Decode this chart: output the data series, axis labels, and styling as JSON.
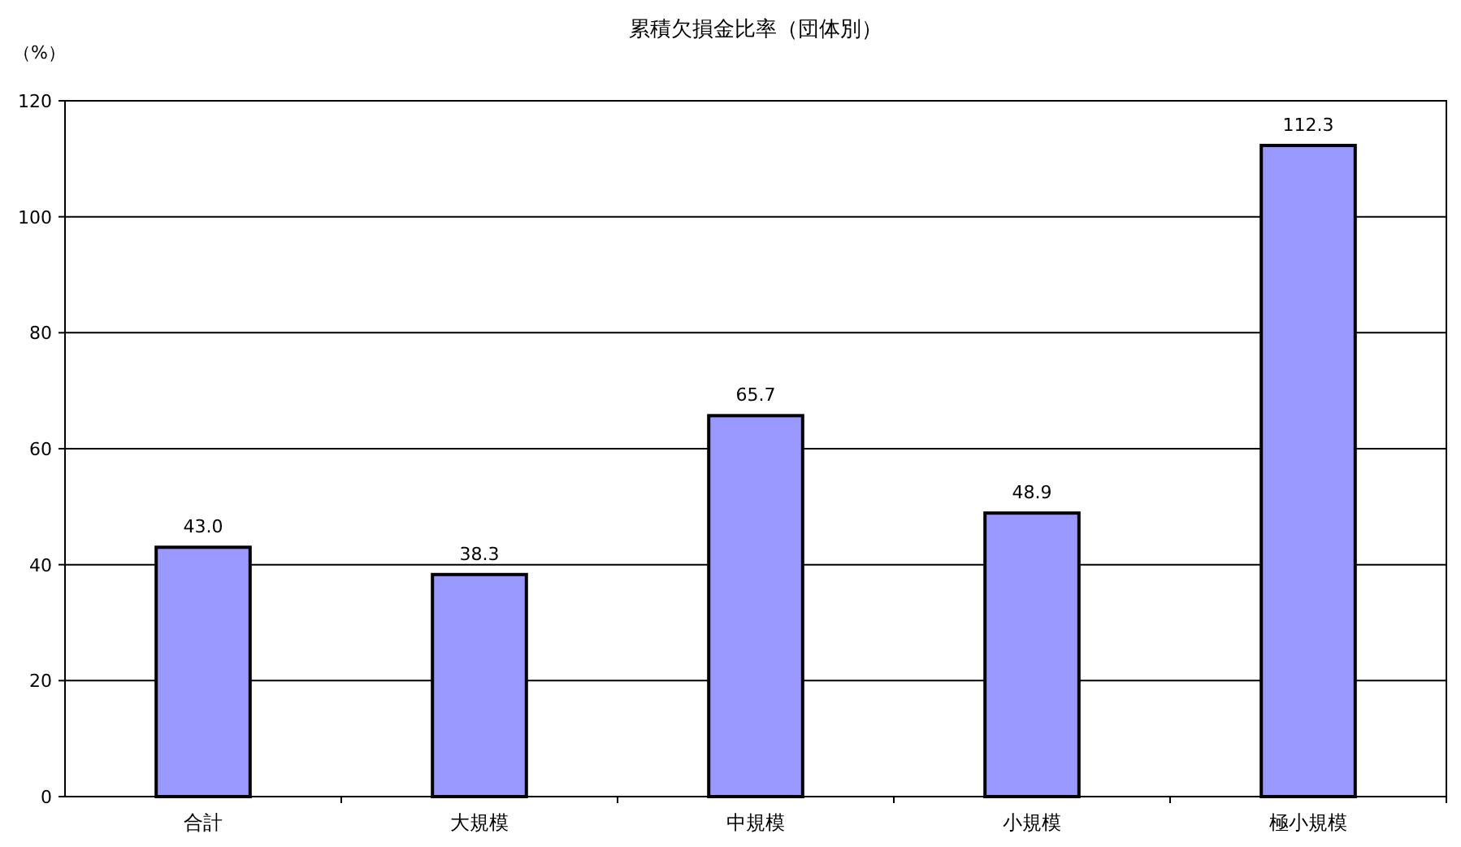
{
  "chart_data": {
    "type": "bar",
    "title": "累積欠損金比率（団体別）",
    "ylabel": "（%）",
    "categories": [
      "合計",
      "大規模",
      "中規模",
      "小規模",
      "極小規模"
    ],
    "values": [
      43.0,
      38.3,
      65.7,
      48.9,
      112.3
    ],
    "value_labels": [
      "43.0",
      "38.3",
      "65.7",
      "48.9",
      "112.3"
    ],
    "color": "#9999ff",
    "ylim": [
      0,
      120
    ],
    "yticks": [
      0,
      20,
      40,
      60,
      80,
      100,
      120
    ],
    "grid": "y"
  }
}
